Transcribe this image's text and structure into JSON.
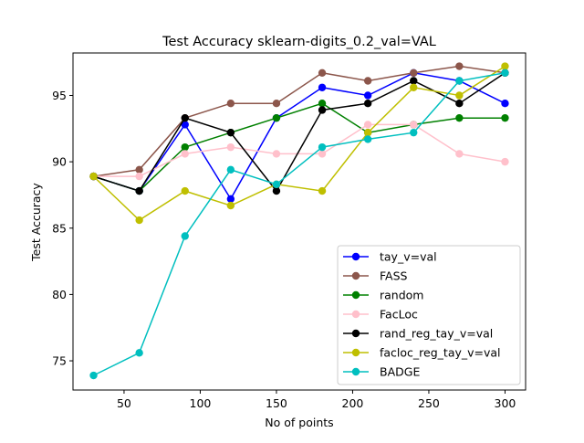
{
  "chart_data": {
    "type": "line",
    "title": "Test Accuracy sklearn-digits_0.2_val=VAL",
    "xlabel": "No of points",
    "ylabel": "Test Accuracy",
    "xlim": [
      16.5,
      313.5
    ],
    "ylim": [
      72.8,
      98.2
    ],
    "xticks": [
      50,
      100,
      150,
      200,
      250,
      300
    ],
    "yticks": [
      75,
      80,
      85,
      90,
      95
    ],
    "grid": false,
    "legend_position": "lower-right",
    "x": [
      30,
      60,
      90,
      120,
      150,
      180,
      210,
      240,
      270,
      300
    ],
    "series": [
      {
        "name": "tay_v=val",
        "color": "#0000ff",
        "values": [
          88.9,
          87.8,
          92.8,
          87.2,
          93.3,
          95.6,
          95.0,
          96.7,
          96.1,
          94.4
        ]
      },
      {
        "name": "FASS",
        "color": "#8c564b",
        "values": [
          88.9,
          89.4,
          93.3,
          94.4,
          94.4,
          96.7,
          96.1,
          96.7,
          97.2,
          96.7
        ]
      },
      {
        "name": "random",
        "color": "#008000",
        "values": [
          88.9,
          87.8,
          91.1,
          92.2,
          93.3,
          94.4,
          92.2,
          92.8,
          93.3,
          93.3
        ]
      },
      {
        "name": "FacLoc",
        "color": "#ffc0cb",
        "values": [
          88.9,
          88.9,
          90.6,
          91.1,
          90.6,
          90.6,
          92.8,
          92.8,
          90.6,
          90.0
        ]
      },
      {
        "name": "rand_reg_tay_v=val",
        "color": "#000000",
        "values": [
          88.9,
          87.8,
          93.3,
          92.2,
          87.8,
          93.9,
          94.4,
          96.1,
          94.4,
          96.7
        ]
      },
      {
        "name": "facloc_reg_tay_v=val",
        "color": "#bfbf00",
        "values": [
          88.9,
          85.6,
          87.8,
          86.7,
          88.3,
          87.8,
          92.2,
          95.6,
          95.0,
          97.2
        ]
      },
      {
        "name": "BADGE",
        "color": "#00bfbf",
        "values": [
          73.9,
          75.6,
          84.4,
          89.4,
          88.3,
          91.1,
          91.7,
          92.2,
          96.1,
          96.7
        ]
      }
    ]
  }
}
